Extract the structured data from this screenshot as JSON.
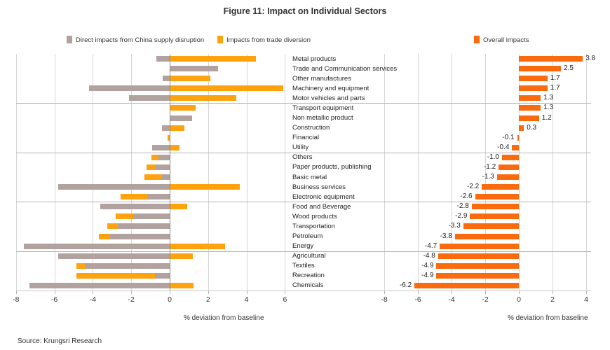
{
  "title": "Figure 11: Impact on Individual Sectors",
  "legend": [
    {
      "label": "Direct impacts from China supply disruption",
      "color": "#b1a2a0"
    },
    {
      "label": "Impacts from trade diversion",
      "color": "#FFA20D"
    },
    {
      "label": "Overall impacts",
      "color": "#FC6A0E"
    }
  ],
  "source": "Source: Krungsri Research",
  "chart_data": {
    "type": "bar",
    "orientation": "horizontal",
    "categories": [
      "Metal products",
      "Trade and Communication services",
      "Other manufactures",
      "Machinery and equipment",
      "Motor vehicles and parts",
      "Transport equipment",
      "Non metallic product",
      "Construction",
      "Financial",
      "Utility",
      "Others",
      "Paper products, publishing",
      "Basic metal",
      "Business services",
      "Electronic equipment",
      "Food and Beverage",
      "Wood products",
      "Transportation",
      "Petroleum",
      "Energy",
      "Agricultural",
      "Textiles",
      "Recreation",
      "Chemicals"
    ],
    "series": [
      {
        "name": "Direct impacts from China supply disruption",
        "color": "#b1a2a0",
        "values": [
          -0.7,
          2.5,
          -0.35,
          -4.2,
          -2.1,
          0,
          1.15,
          -0.4,
          0,
          -0.9,
          -0.6,
          -0.75,
          -0.4,
          -5.8,
          -1.15,
          -3.6,
          -1.9,
          -2.7,
          -3.1,
          -7.6,
          -5.8,
          -4.4,
          -0.75,
          -7.3
        ]
      },
      {
        "name": "Impacts from trade diversion",
        "color": "#FFA20D",
        "values": [
          4.5,
          0,
          2.1,
          5.9,
          3.45,
          1.35,
          0,
          0.75,
          -0.1,
          0.5,
          -0.35,
          -0.45,
          -0.9,
          3.65,
          -1.4,
          0.9,
          -0.9,
          -0.55,
          -0.6,
          2.9,
          1.2,
          -0.45,
          -4.1,
          1.25
        ]
      },
      {
        "name": "Overall impacts",
        "color": "#FC6A0E",
        "values": [
          3.8,
          2.5,
          1.7,
          1.7,
          1.3,
          1.3,
          1.2,
          0.3,
          -0.1,
          -0.4,
          -1.0,
          -1.2,
          -1.3,
          -2.2,
          -2.6,
          -2.8,
          -2.9,
          -3.3,
          -3.8,
          -4.7,
          -4.8,
          -4.9,
          -4.9,
          -6.2
        ],
        "labels": [
          "3.8",
          "2.5",
          "1.7",
          "1.7",
          "1.3",
          "1.3",
          "1.2",
          "0.3",
          "-0.1",
          "-0.4",
          "-1.0",
          "-1.2",
          "-1.3",
          "-2.2",
          "-2.6",
          "-2.8",
          "-2.9",
          "-3.3",
          "-3.8",
          "-4.7",
          "-4.8",
          "-4.9",
          "-4.9",
          "-6.2"
        ]
      }
    ],
    "group_breaks_after": [
      5,
      10,
      15,
      20
    ],
    "left_axis": {
      "min": -8,
      "max": 6,
      "ticks": [
        -8,
        -6,
        -4,
        -2,
        0,
        2,
        4,
        6
      ],
      "label": "% deviation from baseline"
    },
    "right_axis": {
      "min": -8,
      "max": 4,
      "ticks": [
        -8,
        -6,
        -4,
        -2,
        0,
        2,
        4
      ],
      "label": "% deviation from baseline"
    }
  }
}
